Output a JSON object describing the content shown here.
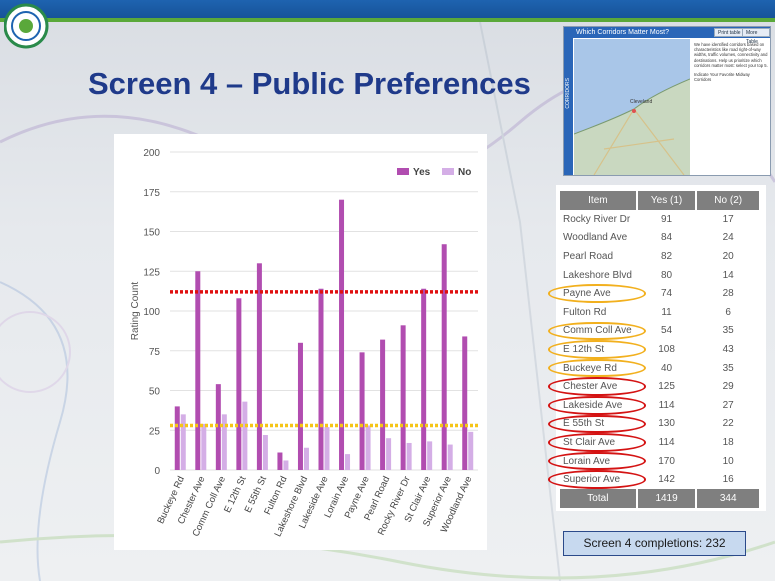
{
  "slide": {
    "title": "Screen 4 – Public Preferences",
    "completions_text": "Screen 4 completions: 232"
  },
  "thumbnail": {
    "header_title": "Which Corridors Matter Most?",
    "side_label": "CORRIDORS",
    "btn_1": "Print table",
    "btn_2": "More Table",
    "map_city_label": "Cleveland",
    "description": "We have identified corridors based on characteristics like road right-of-way widths, traffic volumes, connectivity and destinations. Help us prioritize which corridors matter most: select your top 5.",
    "instruction": "Indicate Your Favorite Midway Corridors"
  },
  "table": {
    "headers": [
      "Item",
      "Yes (1)",
      "No (2)"
    ],
    "rows": [
      {
        "item": "Rocky River Dr",
        "yes": "91",
        "no": "17",
        "ring": ""
      },
      {
        "item": "Woodland Ave",
        "yes": "84",
        "no": "24",
        "ring": ""
      },
      {
        "item": "Pearl Road",
        "yes": "82",
        "no": "20",
        "ring": ""
      },
      {
        "item": "Lakeshore Blvd",
        "yes": "80",
        "no": "14",
        "ring": ""
      },
      {
        "item": "Payne Ave",
        "yes": "74",
        "no": "28",
        "ring": "yellow"
      },
      {
        "item": "Fulton Rd",
        "yes": "11",
        "no": "6",
        "ring": ""
      },
      {
        "item": "Comm Coll Ave",
        "yes": "54",
        "no": "35",
        "ring": "yellow"
      },
      {
        "item": "E 12th St",
        "yes": "108",
        "no": "43",
        "ring": "yellow"
      },
      {
        "item": "Buckeye Rd",
        "yes": "40",
        "no": "35",
        "ring": "yellow"
      },
      {
        "item": "Chester Ave",
        "yes": "125",
        "no": "29",
        "ring": "red"
      },
      {
        "item": "Lakeside Ave",
        "yes": "114",
        "no": "27",
        "ring": "red"
      },
      {
        "item": "E 55th St",
        "yes": "130",
        "no": "22",
        "ring": "red"
      },
      {
        "item": "St Clair Ave",
        "yes": "114",
        "no": "18",
        "ring": "red"
      },
      {
        "item": "Lorain Ave",
        "yes": "170",
        "no": "10",
        "ring": "red"
      },
      {
        "item": "Superior Ave",
        "yes": "142",
        "no": "16",
        "ring": "red"
      }
    ],
    "total": {
      "label": "Total",
      "yes": "1419",
      "no": "344"
    }
  },
  "colors": {
    "yes": "#b14db0",
    "no": "#d4aee6",
    "red_line": "#e01010",
    "yellow_line": "#f5c518",
    "ring_red": "#d41313",
    "ring_yellow": "#f2b01e",
    "title": "#1f3a8a"
  },
  "chart_data": {
    "type": "bar",
    "title": "",
    "xlabel": "",
    "ylabel": "Rating Count",
    "ylim": [
      0,
      200
    ],
    "yticks": [
      0,
      25,
      50,
      75,
      100,
      125,
      150,
      175,
      200
    ],
    "grid": true,
    "legend_position": "top-right",
    "categories": [
      "Buckeye Rd",
      "Chester Ave",
      "Comm Coll Ave",
      "E 12th St",
      "E 55th St",
      "Fulton Rd",
      "Lakeshore Blvd",
      "Lakeside Ave",
      "Lorain Ave",
      "Payne Ave",
      "Pearl Road",
      "Rocky River Dr",
      "St Clair Ave",
      "Superior Ave",
      "Woodland Ave"
    ],
    "series": [
      {
        "name": "Yes",
        "values": [
          40,
          125,
          54,
          108,
          130,
          11,
          80,
          114,
          170,
          74,
          82,
          91,
          114,
          142,
          84
        ]
      },
      {
        "name": "No",
        "values": [
          35,
          29,
          35,
          43,
          22,
          6,
          14,
          27,
          10,
          28,
          20,
          17,
          18,
          16,
          24
        ]
      }
    ],
    "reference_lines": [
      {
        "color": "red",
        "value": 112
      },
      {
        "color": "yellow",
        "value": 28
      }
    ]
  }
}
